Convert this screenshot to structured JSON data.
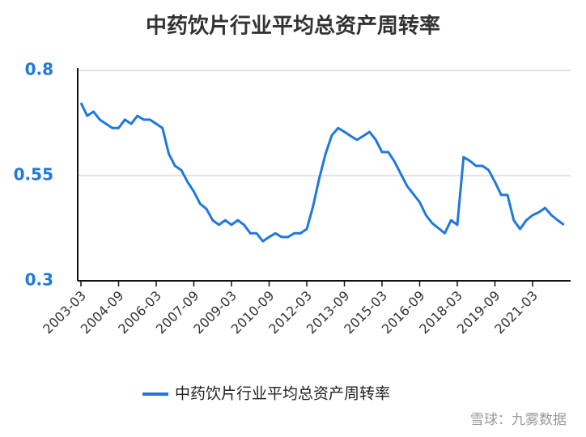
{
  "chart_data": {
    "type": "line",
    "title": "中药饮片行业平均总资产周转率",
    "categories": [
      "2003-03",
      null,
      null,
      null,
      null,
      null,
      "2004-09",
      null,
      null,
      null,
      null,
      null,
      "2006-03",
      null,
      null,
      null,
      null,
      null,
      "2007-09",
      null,
      null,
      null,
      null,
      null,
      "2009-03",
      null,
      null,
      null,
      null,
      null,
      "2010-09",
      null,
      null,
      null,
      null,
      null,
      "2012-03",
      null,
      null,
      null,
      null,
      null,
      "2013-09",
      null,
      null,
      null,
      null,
      null,
      "2015-03",
      null,
      null,
      null,
      null,
      null,
      "2016-09",
      null,
      null,
      null,
      null,
      null,
      "2018-03",
      null,
      null,
      null,
      null,
      null,
      "2019-09",
      null,
      null,
      null,
      null,
      null,
      "2021-03",
      null,
      null,
      null,
      null,
      null
    ],
    "series": [
      {
        "name": "中药饮片行业平均总资产周转率",
        "color": "#1f78e0",
        "values": [
          0.723,
          0.692,
          0.702,
          0.683,
          0.673,
          0.663,
          0.663,
          0.683,
          0.673,
          0.692,
          0.683,
          0.683,
          0.673,
          0.663,
          0.602,
          0.573,
          0.563,
          0.535,
          0.512,
          0.483,
          0.471,
          0.444,
          0.433,
          0.444,
          0.433,
          0.444,
          0.433,
          0.413,
          0.413,
          0.394,
          0.404,
          0.413,
          0.404,
          0.404,
          0.413,
          0.413,
          0.423,
          0.477,
          0.544,
          0.602,
          0.646,
          0.663,
          0.654,
          0.644,
          0.635,
          0.644,
          0.654,
          0.635,
          0.606,
          0.606,
          0.583,
          0.554,
          0.525,
          0.506,
          0.487,
          0.456,
          0.437,
          0.425,
          0.413,
          0.444,
          0.433,
          0.594,
          0.585,
          0.573,
          0.573,
          0.563,
          0.535,
          0.504,
          0.504,
          0.444,
          0.423,
          0.444,
          0.456,
          0.463,
          0.473,
          0.456,
          0.444,
          0.433
        ]
      }
    ],
    "ylim": [
      0.3,
      0.8
    ],
    "yticks": [
      0.3,
      0.55,
      0.8
    ],
    "grid": true,
    "legend": "bottom",
    "watermark": "雪球：九雾数据"
  }
}
